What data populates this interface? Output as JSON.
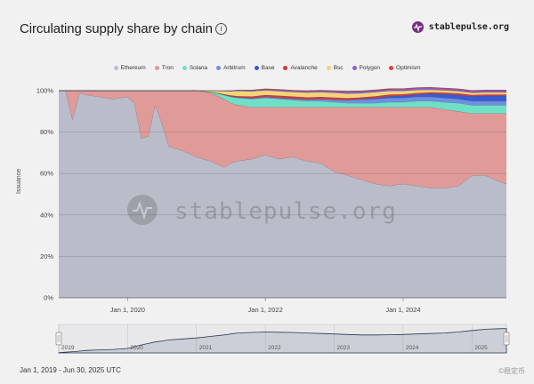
{
  "header": {
    "title": "Circulating supply share by chain",
    "brand": "stablepulse.org"
  },
  "footer": {
    "date_range": "Jan 1, 2019 - Jun 30, 2025 UTC",
    "corner": "©稳定币"
  },
  "watermark": "stablepulse.org",
  "colors": {
    "Ethereum": "#babcca",
    "Tron": "#e09a98",
    "Solana": "#6fe0c6",
    "Arbitrum": "#6f8fe0",
    "Base": "#3b5bd0",
    "Avalanche": "#d23a3a",
    "Bsc": "#f4d477",
    "Polygon": "#8a5fd6",
    "Optimism": "#e83a3a"
  },
  "chart_data": {
    "type": "area",
    "stacked": true,
    "percent": true,
    "title": "Circulating supply share by chain",
    "ylabel": "Issuance",
    "ylim": [
      0,
      100
    ],
    "yticks": [
      "0%",
      "20%",
      "40%",
      "60%",
      "80%",
      "100%"
    ],
    "xticks": [
      "Jan 1, 2020",
      "Jan 1, 2022",
      "Jan 1, 2024"
    ],
    "navigator_ticks": [
      "2019",
      "2020",
      "2021",
      "2022",
      "2023",
      "2024",
      "2025"
    ],
    "legend": [
      "Ethereum",
      "Tron",
      "Solana",
      "Arbitrum",
      "Base",
      "Avalanche",
      "Bsc",
      "Polygon",
      "Optimism"
    ],
    "legend_position": "top",
    "x": [
      2019.0,
      2019.1,
      2019.2,
      2019.3,
      2019.4,
      2019.6,
      2019.8,
      2020.0,
      2020.1,
      2020.2,
      2020.3,
      2020.4,
      2020.5,
      2020.6,
      2020.8,
      2021.0,
      2021.2,
      2021.4,
      2021.5,
      2021.6,
      2021.8,
      2022.0,
      2022.2,
      2022.4,
      2022.6,
      2022.8,
      2023.0,
      2023.2,
      2023.4,
      2023.6,
      2023.8,
      2024.0,
      2024.2,
      2024.4,
      2024.6,
      2024.8,
      2025.0,
      2025.2,
      2025.4,
      2025.5
    ],
    "series": [
      {
        "name": "Ethereum",
        "values": [
          100,
          100,
          86,
          99,
          98,
          97,
          96,
          97,
          94,
          77,
          78,
          93,
          84,
          73,
          71,
          68,
          66,
          63,
          65,
          66,
          67,
          69,
          67,
          68,
          66,
          65,
          61,
          59,
          57,
          55,
          54,
          55,
          54,
          53,
          53,
          54,
          59,
          59,
          56,
          55
        ]
      },
      {
        "name": "Tron",
        "values": [
          0,
          0,
          14,
          1,
          2,
          3,
          4,
          3,
          6,
          23,
          22,
          7,
          16,
          27,
          29,
          32,
          33,
          33,
          29,
          27,
          25,
          23,
          25,
          24,
          26,
          27,
          31,
          33,
          35,
          37,
          38,
          37,
          38,
          39,
          38,
          36,
          30,
          30,
          33,
          34
        ]
      },
      {
        "name": "Solana",
        "values": [
          0,
          0,
          0,
          0,
          0,
          0,
          0,
          0,
          0,
          0,
          0,
          0,
          0,
          0,
          0,
          0,
          0.5,
          2,
          3,
          3.5,
          4,
          4.5,
          4,
          3.5,
          3,
          3,
          2.5,
          2,
          2,
          2,
          2.5,
          2.5,
          3,
          3,
          3.5,
          4,
          4,
          4,
          4,
          4
        ]
      },
      {
        "name": "Arbitrum",
        "values": [
          0,
          0,
          0,
          0,
          0,
          0,
          0,
          0,
          0,
          0,
          0,
          0,
          0,
          0,
          0,
          0,
          0,
          0,
          0.2,
          0.3,
          0.4,
          0.5,
          0.6,
          0.7,
          0.8,
          1.0,
          1.2,
          1.5,
          1.8,
          2,
          2,
          2,
          2,
          2,
          2,
          2,
          2,
          2,
          2,
          2
        ]
      },
      {
        "name": "Base",
        "values": [
          0,
          0,
          0,
          0,
          0,
          0,
          0,
          0,
          0,
          0,
          0,
          0,
          0,
          0,
          0,
          0,
          0,
          0,
          0,
          0,
          0,
          0,
          0,
          0,
          0,
          0,
          0,
          0,
          0.2,
          0.5,
          0.8,
          1.0,
          1.2,
          1.5,
          1.8,
          2.0,
          2.3,
          2.5,
          2.5,
          2.5
        ]
      },
      {
        "name": "Avalanche",
        "values": [
          0,
          0,
          0,
          0,
          0,
          0,
          0,
          0,
          0,
          0,
          0,
          0,
          0,
          0,
          0,
          0,
          0,
          0.3,
          0.5,
          0.6,
          0.8,
          0.9,
          1.0,
          1.0,
          1.0,
          1.0,
          1.0,
          0.9,
          0.8,
          0.8,
          0.8,
          0.8,
          0.7,
          0.7,
          0.7,
          0.7,
          0.7,
          0.7,
          0.7,
          0.7
        ]
      },
      {
        "name": "Bsc",
        "values": [
          0,
          0,
          0,
          0,
          0,
          0,
          0,
          0,
          0,
          0,
          0,
          0,
          0,
          0,
          0,
          0,
          0.5,
          1.5,
          2,
          2.5,
          2.5,
          2.3,
          2.2,
          2.2,
          2.3,
          2.3,
          2.3,
          2.2,
          2,
          2,
          1.8,
          1.6,
          1.5,
          1.3,
          1.2,
          1.1,
          1.0,
          1.0,
          1.0,
          1.0
        ]
      },
      {
        "name": "Polygon",
        "values": [
          0,
          0,
          0,
          0,
          0,
          0,
          0,
          0,
          0,
          0,
          0,
          0,
          0,
          0,
          0,
          0,
          0,
          0.2,
          0.3,
          0.3,
          0.4,
          0.4,
          0.5,
          0.5,
          0.6,
          0.6,
          0.7,
          0.8,
          0.8,
          0.8,
          0.8,
          0.8,
          0.8,
          0.8,
          0.8,
          0.8,
          0.8,
          0.8,
          0.8,
          0.8
        ]
      },
      {
        "name": "Optimism",
        "values": [
          0,
          0,
          0,
          0,
          0,
          0,
          0,
          0,
          0,
          0,
          0,
          0,
          0,
          0,
          0,
          0,
          0,
          0,
          0,
          0.1,
          0.2,
          0.3,
          0.3,
          0.3,
          0.3,
          0.3,
          0.3,
          0.3,
          0.3,
          0.3,
          0.3,
          0.3,
          0.3,
          0.3,
          0.3,
          0.3,
          0.3,
          0.3,
          0.3,
          0.3
        ]
      }
    ],
    "navigator_total": [
      1,
      3,
      5,
      7,
      10,
      12,
      14,
      18,
      25,
      32,
      38,
      44,
      48,
      52,
      56,
      60,
      66,
      72,
      76,
      80,
      82,
      84,
      83,
      82,
      80,
      78,
      76,
      74,
      72,
      72,
      73,
      74,
      76,
      78,
      80,
      84,
      90,
      95,
      97,
      98
    ]
  }
}
